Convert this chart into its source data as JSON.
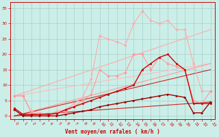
{
  "xlabel": "Vent moyen/en rafales ( km/h )",
  "bg_color": "#cceee8",
  "grid_color": "#aad4ce",
  "xlim": [
    -0.5,
    23.5
  ],
  "ylim": [
    -1,
    37
  ],
  "yticks": [
    0,
    5,
    10,
    15,
    20,
    25,
    30,
    35
  ],
  "xticks": [
    0,
    1,
    2,
    3,
    4,
    5,
    6,
    7,
    8,
    9,
    10,
    11,
    12,
    13,
    14,
    15,
    16,
    17,
    18,
    19,
    20,
    21,
    22,
    23
  ],
  "series": [
    {
      "x": [
        0,
        23
      ],
      "y": [
        6.5,
        28
      ],
      "color": "#ffaaaa",
      "linewidth": 0.8,
      "marker": null,
      "linestyle": "-"
    },
    {
      "x": [
        0,
        23
      ],
      "y": [
        6.5,
        17
      ],
      "color": "#ffbbbb",
      "linewidth": 0.8,
      "marker": null,
      "linestyle": "-"
    },
    {
      "x": [
        0,
        23
      ],
      "y": [
        0,
        17
      ],
      "color": "#ff9999",
      "linewidth": 0.8,
      "marker": null,
      "linestyle": "-"
    },
    {
      "x": [
        0,
        23
      ],
      "y": [
        0,
        15
      ],
      "color": "#cc2222",
      "linewidth": 0.8,
      "marker": null,
      "linestyle": "-"
    },
    {
      "x": [
        0,
        23
      ],
      "y": [
        0,
        4.5
      ],
      "color": "#cc2222",
      "linewidth": 0.8,
      "marker": null,
      "linestyle": "-"
    },
    {
      "x": [
        0,
        1,
        2,
        3,
        4,
        5,
        6,
        7,
        8,
        9,
        10,
        11,
        12,
        13,
        14,
        15,
        16,
        17,
        18,
        19,
        20,
        21,
        22,
        23
      ],
      "y": [
        6.5,
        6.5,
        1.5,
        1,
        0.5,
        1.5,
        2,
        4,
        6,
        12,
        26,
        25,
        24,
        23,
        30,
        34,
        31,
        30,
        31,
        28,
        28,
        17,
        8,
        8
      ],
      "color": "#ffaaaa",
      "linewidth": 0.8,
      "marker": "D",
      "markersize": 1.8,
      "linestyle": "-"
    },
    {
      "x": [
        0,
        1,
        2,
        3,
        4,
        5,
        6,
        7,
        8,
        9,
        10,
        11,
        12,
        13,
        14,
        15,
        16,
        17,
        18,
        19,
        20,
        21,
        22,
        23
      ],
      "y": [
        6.5,
        6.5,
        1,
        0.5,
        0.3,
        0.8,
        1.5,
        3,
        5,
        7,
        15,
        13,
        13,
        14,
        20,
        20,
        15,
        19,
        17,
        16,
        15,
        5,
        4,
        8
      ],
      "color": "#ff9999",
      "linewidth": 0.8,
      "marker": "D",
      "markersize": 1.8,
      "linestyle": "-"
    },
    {
      "x": [
        0,
        1,
        2,
        3,
        4,
        5,
        6,
        7,
        8,
        9,
        10,
        11,
        12,
        13,
        14,
        15,
        16,
        17,
        18,
        19,
        20,
        21,
        22,
        23
      ],
      "y": [
        2.5,
        0.5,
        0.5,
        0.5,
        0.5,
        0.8,
        2,
        3,
        4,
        5,
        6,
        7,
        8,
        9,
        10,
        15,
        17,
        19,
        20,
        17,
        15,
        4,
        4,
        4
      ],
      "color": "#cc0000",
      "linewidth": 1.0,
      "marker": "s",
      "markersize": 2.0,
      "linestyle": "-"
    },
    {
      "x": [
        0,
        1,
        2,
        3,
        4,
        5,
        6,
        7,
        8,
        9,
        10,
        11,
        12,
        13,
        14,
        15,
        16,
        17,
        18,
        19,
        20,
        21,
        22,
        23
      ],
      "y": [
        2,
        0,
        0,
        0,
        0,
        0,
        0.5,
        1,
        1.5,
        2,
        3,
        3.5,
        4,
        4.5,
        5,
        5.5,
        6,
        6.5,
        7,
        6.5,
        6,
        1,
        1,
        4.5
      ],
      "color": "#990000",
      "linewidth": 1.0,
      "marker": ">",
      "markersize": 2.0,
      "linestyle": "-"
    }
  ]
}
